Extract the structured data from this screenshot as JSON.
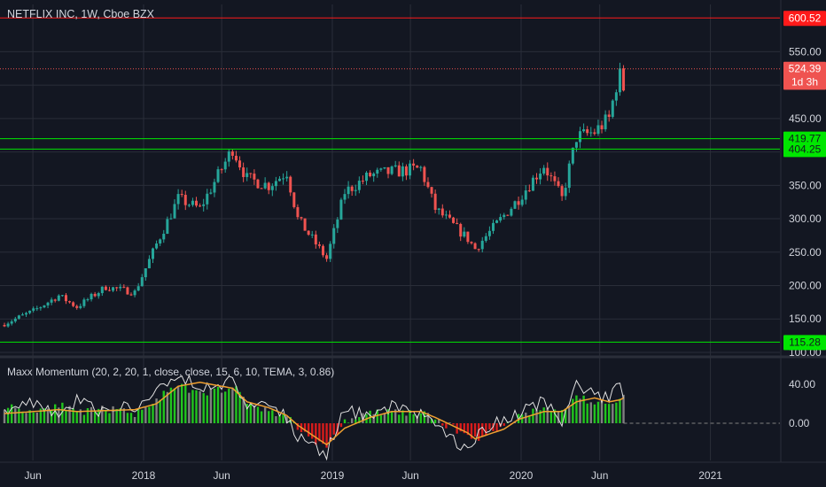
{
  "header": {
    "title": "NETFLIX INC, 1W, Cboe BZX"
  },
  "indicator": {
    "title": "Maxx Momentum (20, 2, 20, 1, close, close, 15, 6, 10, TEMA, 3, 0.86)"
  },
  "colors": {
    "background": "#131722",
    "grid": "#2a2e39",
    "up": "#26a69a",
    "down": "#ef5350",
    "support_line": "#00e600",
    "resistance_line": "#ff1a1a",
    "axis_text": "#d1d4dc",
    "hist_up": "#22c51e",
    "hist_down": "#d81b1b",
    "hist_neutral": "#808080",
    "momentum_line": "#e0e0e0",
    "signal_line": "#f0a030"
  },
  "chart_data": [
    {
      "type": "candlestick",
      "title": "NETFLIX INC, 1W, Cboe BZX",
      "ylim": [
        100,
        600
      ],
      "y_ticks": [
        100,
        150,
        200,
        250,
        300,
        350,
        400,
        450,
        500,
        550
      ],
      "x_tick_labels": [
        "Jun",
        "2018",
        "Jun",
        "2019",
        "Jun",
        "2020",
        "Jun",
        "2021"
      ],
      "grid": true,
      "horizontal_lines": [
        {
          "value": 600.52,
          "label": "600.52",
          "color": "#ff1a1a",
          "style": "solid"
        },
        {
          "value": 524.39,
          "label": "524.39",
          "color": "#ef5350",
          "style": "dotted"
        },
        {
          "value": 419.77,
          "label": "419.77",
          "color": "#00e600",
          "style": "solid"
        },
        {
          "value": 404.25,
          "label": "404.25",
          "color": "#00e600",
          "style": "solid"
        },
        {
          "value": 115.28,
          "label": "115.28",
          "color": "#00e600",
          "style": "solid"
        }
      ],
      "price_labels": [
        {
          "text": "600.52",
          "value": 600.52,
          "color": "#ff1a1a"
        },
        {
          "text": "524.39",
          "value": 524.39,
          "color": "#ef5350"
        },
        {
          "text": "1d 3h",
          "value": 505,
          "color": "#ef5350"
        },
        {
          "text": "419.77",
          "value": 419.77,
          "color": "#00e600"
        },
        {
          "text": "404.25",
          "value": 404.25,
          "color": "#00e600"
        },
        {
          "text": "115.28",
          "value": 115.28,
          "color": "#00e600"
        }
      ],
      "close_anchors": [
        [
          "2017-04-07",
          143
        ],
        [
          "2017-06-02",
          162
        ],
        [
          "2017-07-21",
          185
        ],
        [
          "2017-08-25",
          168
        ],
        [
          "2017-10-20",
          198
        ],
        [
          "2017-12-15",
          190
        ],
        [
          "2018-01-26",
          262
        ],
        [
          "2018-03-09",
          330
        ],
        [
          "2018-04-20",
          315
        ],
        [
          "2018-06-22",
          405
        ],
        [
          "2018-07-20",
          360
        ],
        [
          "2018-08-31",
          350
        ],
        [
          "2018-10-05",
          370
        ],
        [
          "2018-10-26",
          300
        ],
        [
          "2018-12-21",
          240
        ],
        [
          "2019-01-25",
          340
        ],
        [
          "2019-03-15",
          365
        ],
        [
          "2019-04-26",
          370
        ],
        [
          "2019-06-21",
          375
        ],
        [
          "2019-07-19",
          315
        ],
        [
          "2019-09-20",
          270
        ],
        [
          "2019-10-04",
          255
        ],
        [
          "2019-11-29",
          305
        ],
        [
          "2019-12-27",
          330
        ],
        [
          "2020-02-14",
          380
        ],
        [
          "2020-03-20",
          330
        ],
        [
          "2020-04-17",
          422
        ],
        [
          "2020-05-22",
          430
        ],
        [
          "2020-06-19",
          450
        ],
        [
          "2020-07-10",
          525
        ],
        [
          "2020-07-17",
          492
        ]
      ]
    },
    {
      "type": "histogram_with_lines",
      "title": "Maxx Momentum (20, 2, 20, 1, close, close, 15, 6, 10, TEMA, 3, 0.86)",
      "ylim": [
        -40,
        60
      ],
      "y_ticks": [
        0,
        40
      ],
      "y_tick_labels": [
        "0.00",
        "40.00"
      ],
      "series": [
        {
          "name": "histogram",
          "anchors": [
            [
              "2017-04-07",
              18
            ],
            [
              "2017-06-02",
              12
            ],
            [
              "2017-07-21",
              20
            ],
            [
              "2017-08-25",
              10
            ],
            [
              "2017-10-20",
              15
            ],
            [
              "2017-12-15",
              10
            ],
            [
              "2018-01-26",
              25
            ],
            [
              "2018-03-09",
              38
            ],
            [
              "2018-04-20",
              30
            ],
            [
              "2018-06-22",
              38
            ],
            [
              "2018-07-20",
              22
            ],
            [
              "2018-08-31",
              12
            ],
            [
              "2018-10-05",
              8
            ],
            [
              "2018-10-26",
              -5
            ],
            [
              "2018-12-21",
              -26
            ],
            [
              "2019-01-25",
              2
            ],
            [
              "2019-03-15",
              10
            ],
            [
              "2019-04-26",
              12
            ],
            [
              "2019-06-21",
              10
            ],
            [
              "2019-07-19",
              4
            ],
            [
              "2019-09-20",
              -12
            ],
            [
              "2019-10-04",
              -16
            ],
            [
              "2019-11-29",
              -3
            ],
            [
              "2019-12-27",
              8
            ],
            [
              "2020-02-14",
              15
            ],
            [
              "2020-03-20",
              12
            ],
            [
              "2020-04-17",
              28
            ],
            [
              "2020-05-22",
              20
            ],
            [
              "2020-06-19",
              22
            ],
            [
              "2020-07-10",
              26
            ],
            [
              "2020-07-17",
              28
            ]
          ]
        },
        {
          "name": "momentum",
          "anchors": [
            [
              "2017-04-07",
              15
            ],
            [
              "2017-06-02",
              22
            ],
            [
              "2017-07-21",
              8
            ],
            [
              "2017-08-25",
              25
            ],
            [
              "2017-10-20",
              10
            ],
            [
              "2017-12-15",
              18
            ],
            [
              "2018-01-26",
              30
            ],
            [
              "2018-03-09",
              50
            ],
            [
              "2018-04-20",
              35
            ],
            [
              "2018-06-22",
              45
            ],
            [
              "2018-07-20",
              18
            ],
            [
              "2018-08-31",
              22
            ],
            [
              "2018-10-05",
              5
            ],
            [
              "2018-10-26",
              -15
            ],
            [
              "2018-12-21",
              -30
            ],
            [
              "2019-01-25",
              12
            ],
            [
              "2019-03-15",
              8
            ],
            [
              "2019-04-26",
              18
            ],
            [
              "2019-06-21",
              10
            ],
            [
              "2019-07-19",
              -5
            ],
            [
              "2019-09-20",
              -25
            ],
            [
              "2019-10-04",
              -15
            ],
            [
              "2019-11-29",
              5
            ],
            [
              "2019-12-27",
              10
            ],
            [
              "2020-02-14",
              22
            ],
            [
              "2020-03-20",
              0
            ],
            [
              "2020-04-17",
              40
            ],
            [
              "2020-05-22",
              30
            ],
            [
              "2020-06-19",
              25
            ],
            [
              "2020-07-10",
              42
            ],
            [
              "2020-07-17",
              32
            ]
          ]
        },
        {
          "name": "signal",
          "anchors": [
            [
              "2017-04-07",
              10
            ],
            [
              "2017-06-02",
              12
            ],
            [
              "2017-07-21",
              14
            ],
            [
              "2017-08-25",
              12
            ],
            [
              "2017-10-20",
              13
            ],
            [
              "2017-12-15",
              14
            ],
            [
              "2018-01-26",
              20
            ],
            [
              "2018-03-09",
              38
            ],
            [
              "2018-04-20",
              42
            ],
            [
              "2018-06-22",
              36
            ],
            [
              "2018-07-20",
              22
            ],
            [
              "2018-08-31",
              16
            ],
            [
              "2018-10-05",
              8
            ],
            [
              "2018-10-26",
              -2
            ],
            [
              "2018-12-21",
              -22
            ],
            [
              "2019-01-25",
              -5
            ],
            [
              "2019-03-15",
              6
            ],
            [
              "2019-04-26",
              12
            ],
            [
              "2019-06-21",
              12
            ],
            [
              "2019-07-19",
              6
            ],
            [
              "2019-09-20",
              -10
            ],
            [
              "2019-10-04",
              -16
            ],
            [
              "2019-11-29",
              -6
            ],
            [
              "2019-12-27",
              4
            ],
            [
              "2020-02-14",
              12
            ],
            [
              "2020-03-20",
              12
            ],
            [
              "2020-04-17",
              22
            ],
            [
              "2020-05-22",
              26
            ],
            [
              "2020-06-19",
              22
            ],
            [
              "2020-07-10",
              24
            ],
            [
              "2020-07-17",
              26
            ]
          ]
        }
      ]
    }
  ]
}
